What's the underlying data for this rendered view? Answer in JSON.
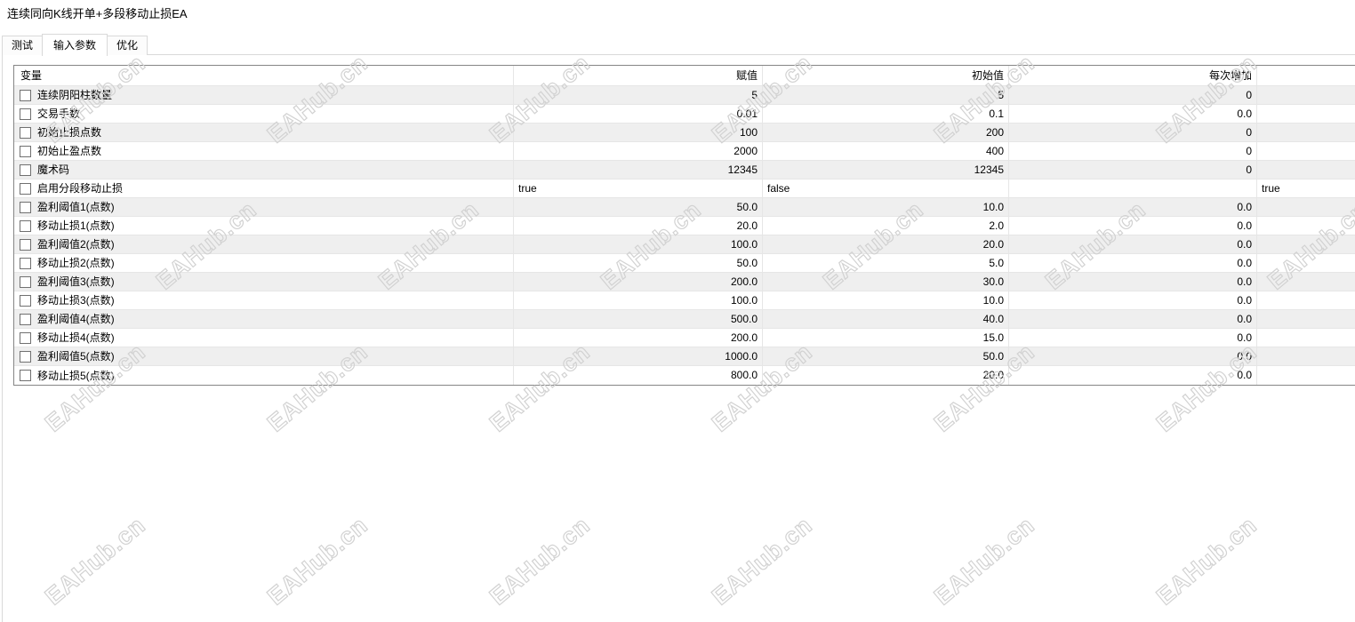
{
  "window": {
    "title": "连续同向K线开单+多段移动止损EA"
  },
  "tabs": [
    {
      "label": "测试",
      "active": false
    },
    {
      "label": "输入参数",
      "active": true
    },
    {
      "label": "优化",
      "active": false
    }
  ],
  "watermark": {
    "text": "EAHub.cn"
  },
  "colors": {
    "row_alt": "#efefef",
    "grid_line": "#e6e6e6",
    "table_border": "#868686",
    "watermark": "#d2d2d2"
  },
  "table": {
    "columns": [
      "变量",
      "赋值",
      "初始值",
      "每次增加",
      ""
    ],
    "rows": [
      {
        "name": "连续阴阳柱数量",
        "value": "5",
        "start": "5",
        "step": "0",
        "stop": "",
        "checked": false,
        "is_bool": false
      },
      {
        "name": "交易手数",
        "value": "0.01",
        "start": "0.1",
        "step": "0.0",
        "stop": "",
        "checked": false,
        "is_bool": false
      },
      {
        "name": "初始止损点数",
        "value": "100",
        "start": "200",
        "step": "0",
        "stop": "",
        "checked": false,
        "is_bool": false
      },
      {
        "name": "初始止盈点数",
        "value": "2000",
        "start": "400",
        "step": "0",
        "stop": "",
        "checked": false,
        "is_bool": false
      },
      {
        "name": "魔术码",
        "value": "12345",
        "start": "12345",
        "step": "0",
        "stop": "",
        "checked": false,
        "is_bool": false
      },
      {
        "name": "启用分段移动止损",
        "value": "true",
        "start": "false",
        "step": "",
        "stop": "true",
        "checked": false,
        "is_bool": true
      },
      {
        "name": "盈利阈值1(点数)",
        "value": "50.0",
        "start": "10.0",
        "step": "0.0",
        "stop": "",
        "checked": false,
        "is_bool": false
      },
      {
        "name": "移动止损1(点数)",
        "value": "20.0",
        "start": "2.0",
        "step": "0.0",
        "stop": "",
        "checked": false,
        "is_bool": false
      },
      {
        "name": "盈利阈值2(点数)",
        "value": "100.0",
        "start": "20.0",
        "step": "0.0",
        "stop": "",
        "checked": false,
        "is_bool": false
      },
      {
        "name": "移动止损2(点数)",
        "value": "50.0",
        "start": "5.0",
        "step": "0.0",
        "stop": "",
        "checked": false,
        "is_bool": false
      },
      {
        "name": "盈利阈值3(点数)",
        "value": "200.0",
        "start": "30.0",
        "step": "0.0",
        "stop": "",
        "checked": false,
        "is_bool": false
      },
      {
        "name": "移动止损3(点数)",
        "value": "100.0",
        "start": "10.0",
        "step": "0.0",
        "stop": "",
        "checked": false,
        "is_bool": false
      },
      {
        "name": "盈利阈值4(点数)",
        "value": "500.0",
        "start": "40.0",
        "step": "0.0",
        "stop": "",
        "checked": false,
        "is_bool": false
      },
      {
        "name": "移动止损4(点数)",
        "value": "200.0",
        "start": "15.0",
        "step": "0.0",
        "stop": "",
        "checked": false,
        "is_bool": false
      },
      {
        "name": "盈利阈值5(点数)",
        "value": "1000.0",
        "start": "50.0",
        "step": "0.0",
        "stop": "",
        "checked": false,
        "is_bool": false
      },
      {
        "name": "移动止损5(点数)",
        "value": "800.0",
        "start": "20.0",
        "step": "0.0",
        "stop": "",
        "checked": false,
        "is_bool": false
      }
    ]
  }
}
